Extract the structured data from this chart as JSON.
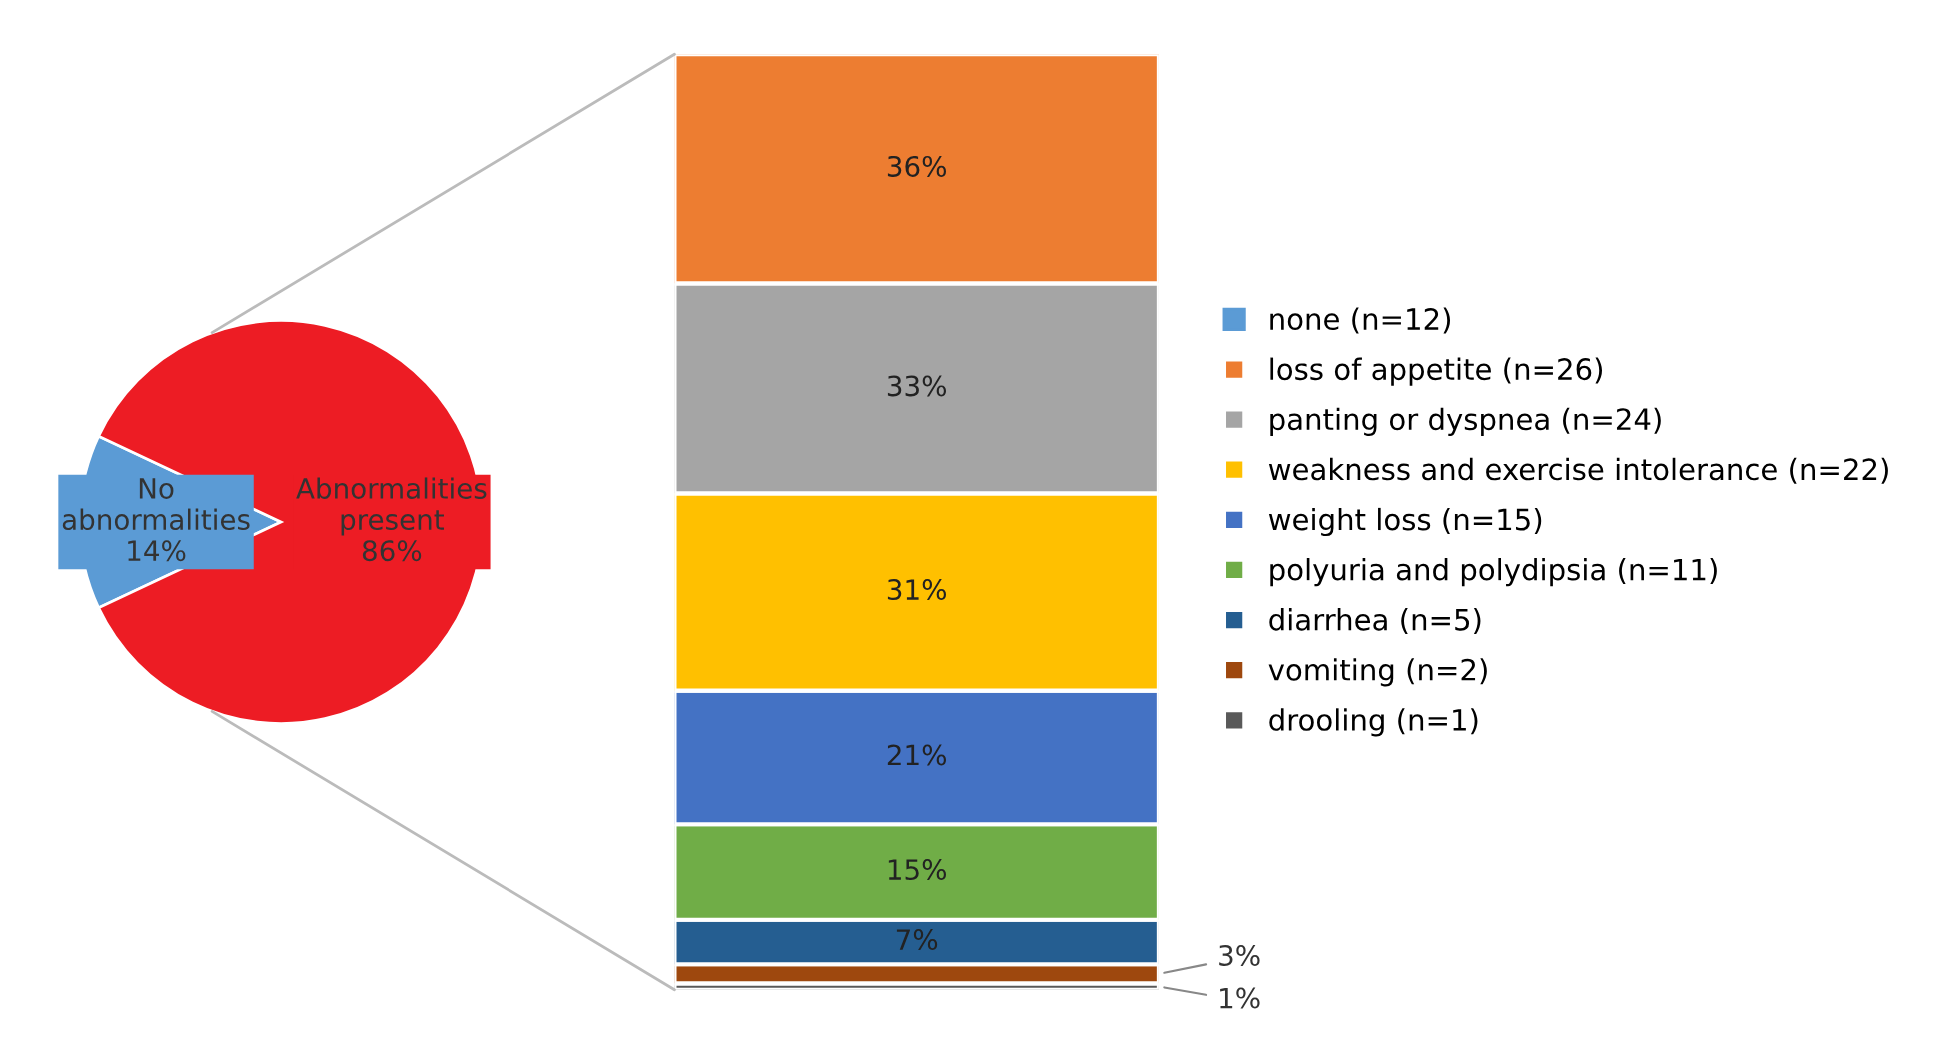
{
  "chart_data": [
    {
      "type": "pie",
      "categories": [
        "No abnormalities",
        "Abnormalities present"
      ],
      "values": [
        14,
        86
      ],
      "colors": [
        "#5b9bd5",
        "#ed1c24"
      ],
      "value_labels": [
        "14%",
        "86%"
      ]
    },
    {
      "type": "bar",
      "stacked": true,
      "categories": [
        null
      ],
      "legend": "right",
      "series": [
        {
          "name": "drooling (n=1)",
          "color": "#595959",
          "values": [
            1
          ],
          "value_labels": [
            "1%"
          ]
        },
        {
          "name": "vomiting (n=2)",
          "color": "#9e480e",
          "values": [
            3
          ],
          "value_labels": [
            "3%"
          ]
        },
        {
          "name": "diarrhea (n=5)",
          "color": "#255e91",
          "values": [
            7
          ],
          "value_labels": [
            "7%"
          ]
        },
        {
          "name": "polyuria and polydipsia (n=11)",
          "color": "#70ad47",
          "values": [
            15
          ],
          "value_labels": [
            "15%"
          ]
        },
        {
          "name": "weight loss (n=15)",
          "color": "#4472c4",
          "values": [
            21
          ],
          "value_labels": [
            "21%"
          ]
        },
        {
          "name": "weakness and exercise intolerance (n=22)",
          "color": "#ffc000",
          "values": [
            31
          ],
          "value_labels": [
            "31%"
          ]
        },
        {
          "name": "panting or dyspnea (n=24)",
          "color": "#a5a5a5",
          "values": [
            33
          ],
          "value_labels": [
            "33%"
          ]
        },
        {
          "name": "loss of appetite (n=26)",
          "color": "#ed7d31",
          "values": [
            36
          ],
          "value_labels": [
            "36%"
          ]
        },
        {
          "name": "none (n=12)",
          "color": "#5b9bd5",
          "values": [
            null
          ]
        }
      ]
    }
  ]
}
